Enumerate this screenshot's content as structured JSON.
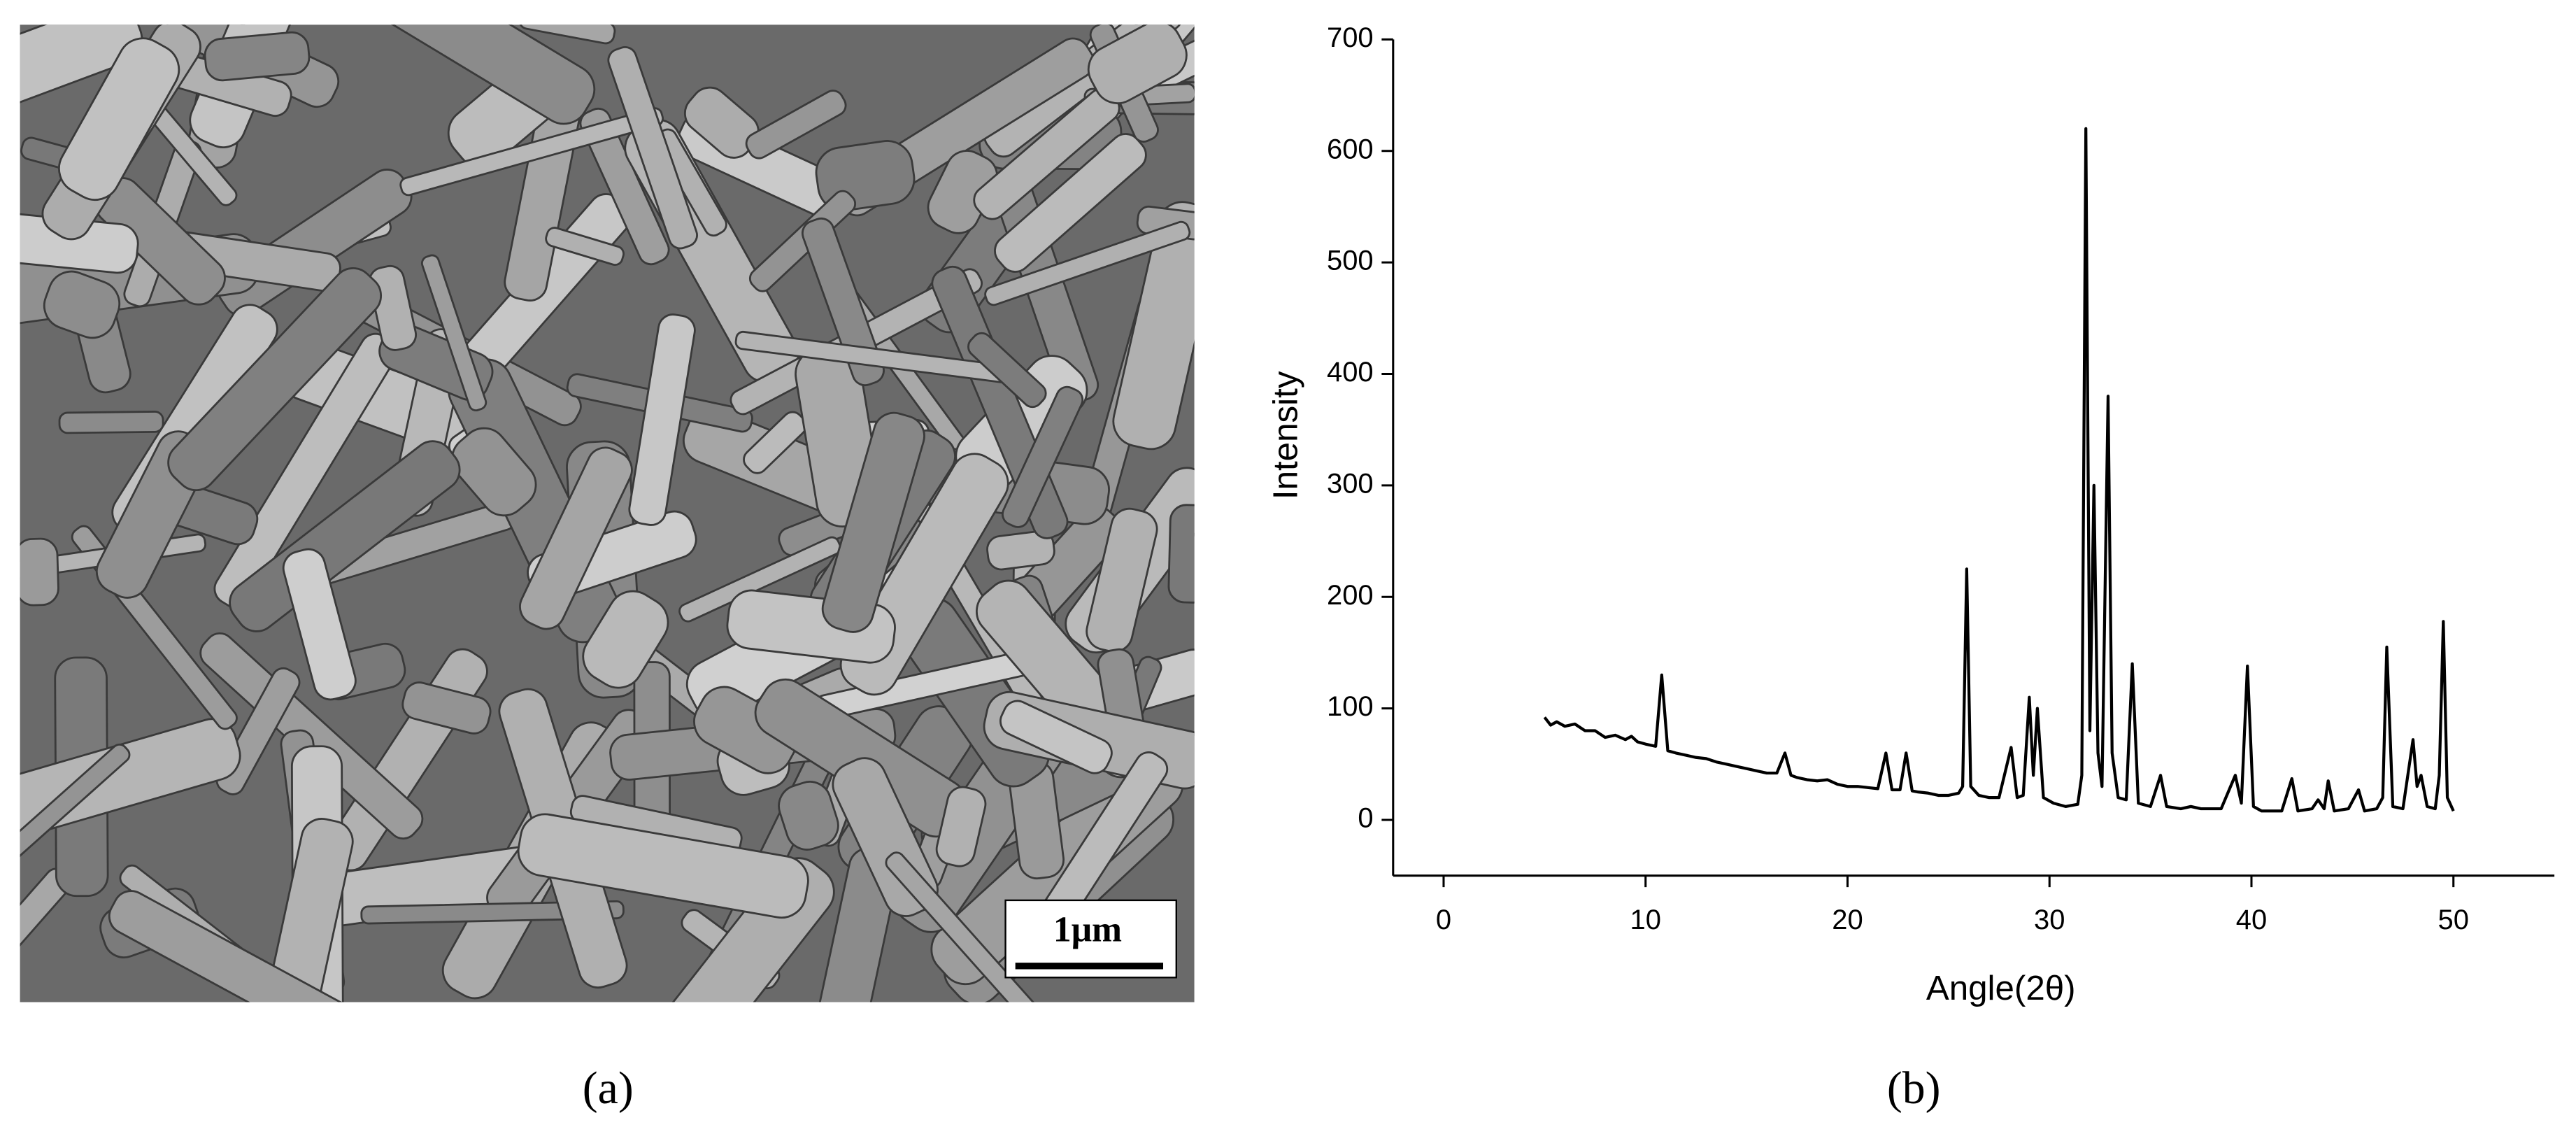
{
  "panels": {
    "a": {
      "caption": "(a)",
      "scale_bar": "1μm"
    },
    "b": {
      "caption": "(b)"
    }
  },
  "chart_data": {
    "type": "line",
    "xlabel": "Angle(2θ)",
    "ylabel": "Intensity",
    "color": "#000000",
    "xlim": [
      -2.5,
      55
    ],
    "ylim": [
      -50,
      700
    ],
    "xticks": [
      0,
      10,
      20,
      30,
      40,
      50
    ],
    "yticks": [
      0,
      100,
      200,
      300,
      400,
      500,
      600,
      700
    ],
    "x": [
      5,
      5.3,
      5.6,
      6,
      6.5,
      7,
      7.5,
      8,
      8.5,
      9,
      9.3,
      9.6,
      10,
      10.5,
      10.8,
      11.1,
      11.5,
      12,
      12.5,
      13,
      13.5,
      14,
      14.5,
      15,
      15.5,
      16,
      16.5,
      16.9,
      17.2,
      17.5,
      18,
      18.5,
      19,
      19.5,
      20,
      20.5,
      21,
      21.5,
      21.9,
      22.2,
      22.6,
      22.9,
      23.2,
      23.5,
      24,
      24.5,
      25,
      25.5,
      25.7,
      25.9,
      26.1,
      26.5,
      27,
      27.5,
      28.1,
      28.4,
      28.7,
      29.0,
      29.2,
      29.4,
      29.7,
      30.2,
      30.8,
      31.4,
      31.6,
      31.8,
      32.0,
      32.2,
      32.4,
      32.6,
      32.9,
      33.1,
      33.4,
      33.8,
      34.1,
      34.4,
      35,
      35.5,
      35.8,
      36.5,
      37,
      37.5,
      38,
      38.5,
      39.2,
      39.5,
      39.8,
      40.1,
      40.5,
      41,
      41.5,
      42.0,
      42.3,
      43,
      43.3,
      43.6,
      43.8,
      44.1,
      44.8,
      45.3,
      45.6,
      46.2,
      46.5,
      46.7,
      47.0,
      47.5,
      48.0,
      48.2,
      48.4,
      48.7,
      49.1,
      49.3,
      49.5,
      49.7,
      50
    ],
    "values": [
      92,
      85,
      88,
      84,
      86,
      80,
      80,
      74,
      76,
      72,
      75,
      70,
      68,
      66,
      130,
      62,
      60,
      58,
      56,
      55,
      52,
      50,
      48,
      46,
      44,
      42,
      42,
      60,
      40,
      38,
      36,
      35,
      36,
      32,
      30,
      30,
      29,
      28,
      60,
      27,
      27,
      60,
      26,
      25,
      24,
      22,
      22,
      24,
      30,
      225,
      30,
      22,
      20,
      20,
      65,
      20,
      22,
      110,
      40,
      100,
      20,
      15,
      12,
      14,
      40,
      620,
      80,
      300,
      60,
      30,
      380,
      60,
      20,
      18,
      140,
      15,
      12,
      40,
      12,
      10,
      12,
      10,
      10,
      10,
      40,
      15,
      138,
      12,
      8,
      8,
      8,
      37,
      8,
      10,
      18,
      10,
      35,
      8,
      10,
      27,
      8,
      10,
      20,
      155,
      12,
      10,
      72,
      30,
      40,
      12,
      10,
      40,
      178,
      20,
      8
    ]
  }
}
